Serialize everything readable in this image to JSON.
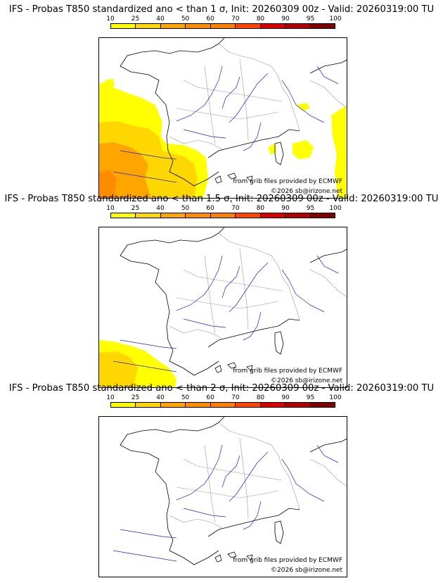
{
  "colorbar": {
    "ticks": [
      "10",
      "25",
      "40",
      "50",
      "60",
      "70",
      "80",
      "90",
      "95",
      "100"
    ],
    "colors": [
      "#ffff00",
      "#ffd700",
      "#ffa500",
      "#ff8c00",
      "#ff7f00",
      "#ff4500",
      "#dd0000",
      "#b00000",
      "#800000"
    ]
  },
  "panels": [
    {
      "title": "IFS - Probas T850  standardized ano < than 1 σ, Init: 20260309 00z - Valid: 20260319:00 TU",
      "threshold": "1 σ"
    },
    {
      "title": "IFS - Probas T850  standardized ano < than 1.5 σ, Init: 20260309 00z - Valid: 20260319:00 TU",
      "threshold": "1.5 σ"
    },
    {
      "title": "IFS - Probas T850  standardized ano < than 2 σ, Init: 20260309 00z - Valid: 20260319:00 TU",
      "threshold": "2 σ"
    }
  ],
  "credit": "from grib files provided by ECMWF",
  "copyright": "©2026 sb@irizone.net",
  "colors": {
    "coast": "#000000",
    "rivers": "#2222cc",
    "borders": "#999999"
  }
}
